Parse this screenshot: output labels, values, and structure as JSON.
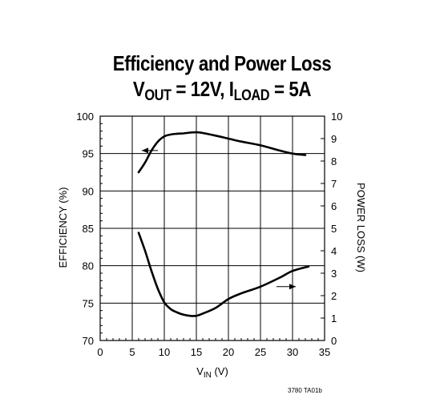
{
  "chart_data": {
    "type": "line",
    "title_line1": "Efficiency and Power Loss",
    "title_line2": {
      "v": "V",
      "v_sub": "OUT",
      "mid": " = 12V, I",
      "i_sub": "LOAD",
      "end": " = 5A"
    },
    "xlabel": {
      "main": "V",
      "sub": "IN",
      "unit": " (V)"
    },
    "ylabel_left": "EFFICIENCY (%)",
    "ylabel_right": "POWER LOSS (W)",
    "xlim": [
      0,
      35
    ],
    "ylim_left": [
      70,
      100
    ],
    "ylim_right": [
      0,
      10
    ],
    "x_ticks": [
      "0",
      "5",
      "10",
      "15",
      "20",
      "25",
      "30",
      "35"
    ],
    "y_left_ticks": [
      "70",
      "75",
      "80",
      "85",
      "90",
      "95",
      "100"
    ],
    "y_right_ticks": [
      "0",
      "1",
      "2",
      "3",
      "4",
      "5",
      "6",
      "7",
      "8",
      "9",
      "10"
    ],
    "grid": true,
    "series": [
      {
        "axis": "left",
        "x": [
          6,
          7,
          8,
          9,
          10,
          11,
          12,
          13,
          14,
          15,
          16,
          18,
          20,
          22,
          25,
          28,
          30,
          32
        ],
        "y": [
          92.5,
          93.8,
          95.4,
          96.6,
          97.3,
          97.55,
          97.65,
          97.7,
          97.8,
          97.85,
          97.75,
          97.4,
          97.0,
          96.6,
          96.1,
          95.4,
          95.0,
          94.8
        ]
      },
      {
        "axis": "right",
        "x": [
          6,
          7,
          8,
          9,
          10,
          11,
          12,
          13,
          14,
          15,
          16,
          18,
          20,
          22,
          25,
          28,
          30,
          32.5
        ],
        "y": [
          4.8,
          4.0,
          3.1,
          2.3,
          1.7,
          1.4,
          1.25,
          1.15,
          1.1,
          1.1,
          1.2,
          1.45,
          1.85,
          2.1,
          2.4,
          2.8,
          3.1,
          3.3
        ]
      }
    ],
    "annotations": [
      {
        "type": "arrow",
        "direction": "left",
        "points_to": "left-axis",
        "x": [
          6.5,
          9
        ],
        "y_left": 95.4
      },
      {
        "type": "arrow",
        "direction": "right",
        "points_to": "right-axis",
        "x": [
          27.5,
          30.5
        ],
        "y_right": 2.4
      }
    ],
    "figure_id": "3780 TA01b"
  }
}
